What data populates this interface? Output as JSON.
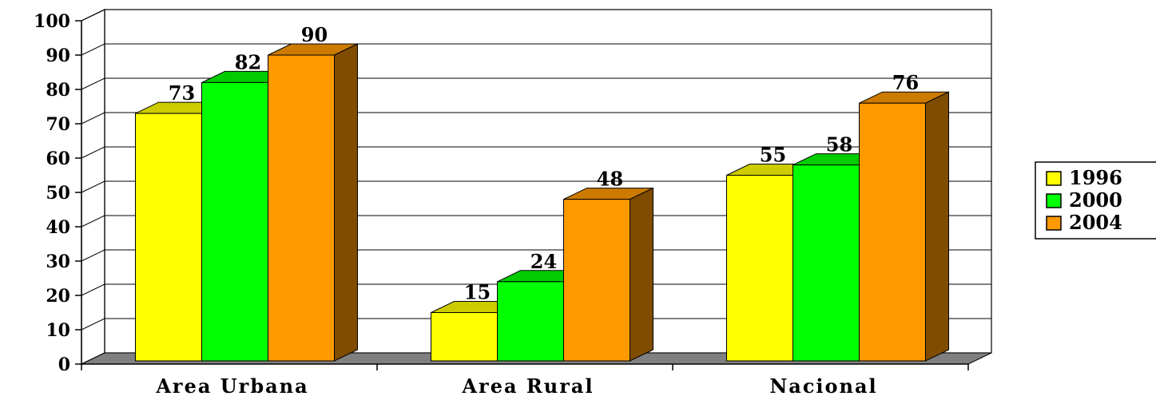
{
  "chart_data": {
    "type": "bar",
    "title": "",
    "xlabel": "",
    "ylabel": "",
    "ylim": [
      0,
      100
    ],
    "yticks": [
      "0",
      "10",
      "20",
      "30",
      "40",
      "50",
      "60",
      "70",
      "80",
      "90",
      "100"
    ],
    "categories": [
      "Area Urbana",
      "Area Rural",
      "Nacional"
    ],
    "series": [
      {
        "name": "1996",
        "values": [
          73,
          15,
          55
        ],
        "labels": [
          "73",
          "15",
          "55"
        ],
        "color": "#FFFF00",
        "top_color": "#CCCC00",
        "side_color": "#999900"
      },
      {
        "name": "2000",
        "values": [
          82,
          24,
          58
        ],
        "labels": [
          "82",
          "24",
          "58"
        ],
        "color": "#00FF00",
        "top_color": "#00CC00",
        "side_color": "#009900"
      },
      {
        "name": "2004",
        "values": [
          90,
          48,
          76
        ],
        "labels": [
          "90",
          "48",
          "76"
        ],
        "color": "#FF9900",
        "top_color": "#CC7A00",
        "side_color": "#804C00"
      }
    ],
    "legend_position": "right",
    "grid": true,
    "style": "3d-clustered-bar"
  }
}
